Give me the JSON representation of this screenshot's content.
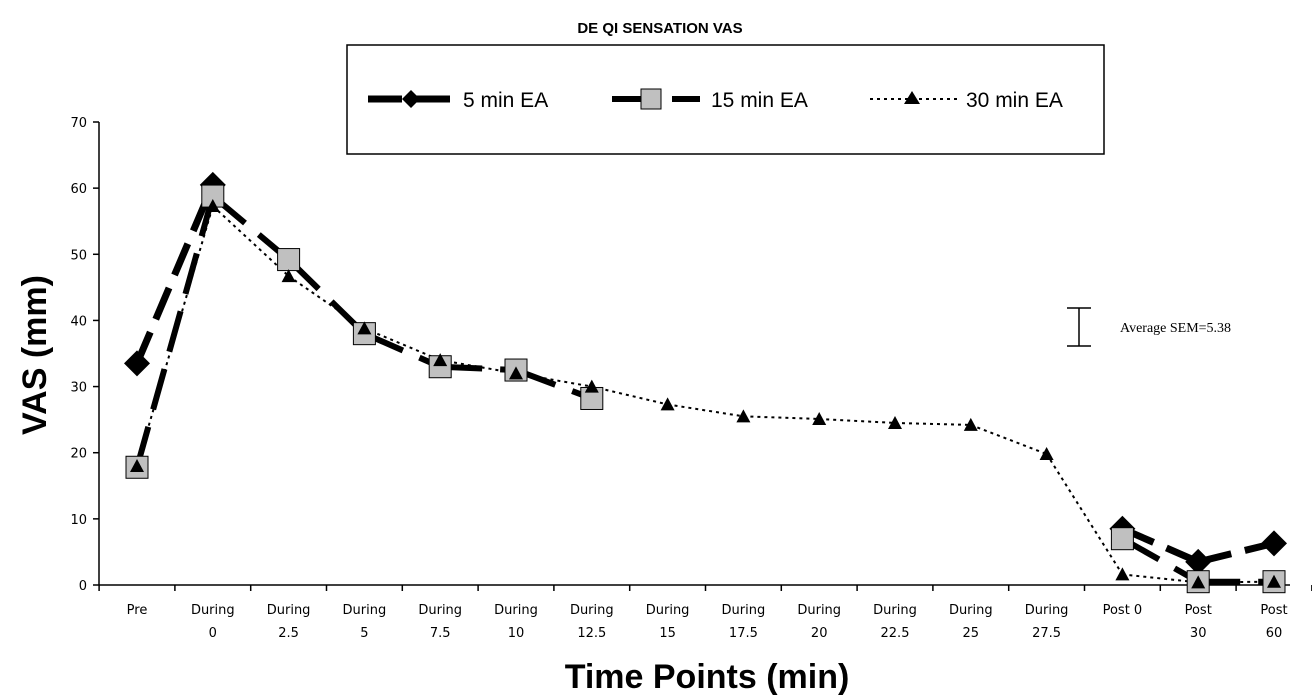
{
  "chart_data": {
    "type": "line",
    "title": "DE QI SENSATION VAS",
    "xlabel": "Time Points  (min)",
    "ylabel": "VAS (mm)",
    "ylim": [
      0,
      70
    ],
    "yticks": [
      0,
      10,
      20,
      30,
      40,
      50,
      60,
      70
    ],
    "categories": [
      [
        "Pre",
        ""
      ],
      [
        "During",
        "0"
      ],
      [
        "During",
        "2.5"
      ],
      [
        "During",
        "5"
      ],
      [
        "During",
        "7.5"
      ],
      [
        "During",
        "10"
      ],
      [
        "During",
        "12.5"
      ],
      [
        "During",
        "15"
      ],
      [
        "During",
        "17.5"
      ],
      [
        "During",
        "20"
      ],
      [
        "During",
        "22.5"
      ],
      [
        "During",
        "25"
      ],
      [
        "During",
        "27.5"
      ],
      [
        "Post 0",
        ""
      ],
      [
        "Post",
        "30"
      ],
      [
        "Post",
        "60"
      ]
    ],
    "series": [
      {
        "name": "5 min EA",
        "marker": "diamond",
        "color": "#000000",
        "values": [
          33.5,
          60.5,
          null,
          null,
          null,
          null,
          null,
          null,
          null,
          null,
          null,
          null,
          null,
          8.5,
          3.5,
          6.3
        ]
      },
      {
        "name": "15 min EA",
        "marker": "square",
        "color": "#000000",
        "fill": "#c0c0c0",
        "values": [
          17.8,
          58.8,
          49.2,
          38.0,
          33.0,
          32.5,
          28.2,
          null,
          null,
          null,
          null,
          null,
          null,
          7.0,
          0.5,
          0.5
        ]
      },
      {
        "name": "30 min EA",
        "marker": "triangle",
        "color": "#000000",
        "values": [
          18.0,
          57.3,
          46.7,
          38.8,
          34.0,
          32.0,
          30.0,
          27.3,
          25.5,
          25.1,
          24.5,
          24.2,
          19.8,
          1.6,
          0.4,
          0.5
        ]
      }
    ],
    "annotation": "Average SEM=5.38",
    "sem_value": 5.38,
    "legend_placement": "top-center",
    "grid": false
  }
}
